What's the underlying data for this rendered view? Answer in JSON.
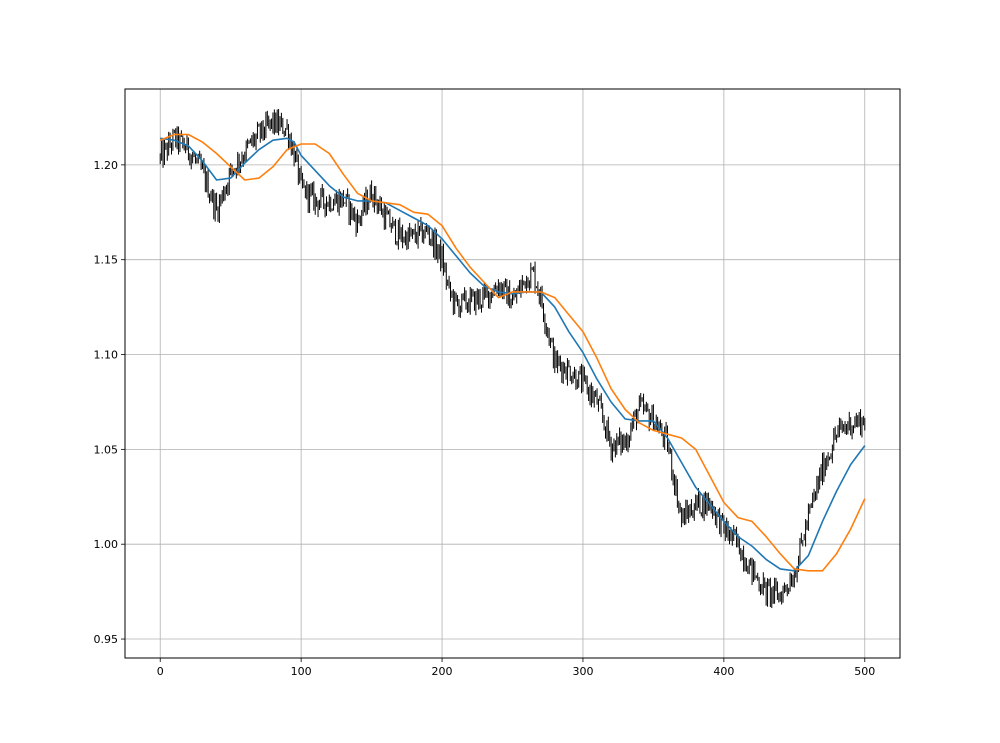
{
  "chart_data": {
    "type": "line",
    "title": "",
    "xlabel": "",
    "ylabel": "",
    "xlim": [
      -25,
      525
    ],
    "ylim": [
      0.94,
      1.24
    ],
    "x_ticks": [
      0,
      100,
      200,
      300,
      400,
      500
    ],
    "x_tick_labels": [
      "0",
      "100",
      "200",
      "300",
      "400",
      "500"
    ],
    "y_ticks": [
      0.95,
      1.0,
      1.05,
      1.1,
      1.15,
      1.2
    ],
    "y_tick_labels": [
      "0.95",
      "1.00",
      "1.05",
      "1.10",
      "1.15",
      "1.20"
    ],
    "grid": true,
    "legend": "none",
    "series": [
      {
        "kind": "ohlc-bars",
        "color": "#000000",
        "anchors": {
          "x": [
            0,
            10,
            20,
            30,
            40,
            50,
            60,
            70,
            80,
            90,
            95,
            100,
            110,
            120,
            130,
            140,
            150,
            160,
            170,
            180,
            190,
            200,
            205,
            210,
            220,
            230,
            240,
            250,
            260,
            265,
            270,
            280,
            290,
            300,
            310,
            320,
            330,
            340,
            350,
            360,
            370,
            380,
            390,
            400,
            410,
            420,
            430,
            440,
            450,
            460,
            470,
            480,
            490,
            500
          ],
          "y": [
            1.203,
            1.214,
            1.208,
            1.196,
            1.176,
            1.196,
            1.207,
            1.216,
            1.222,
            1.219,
            1.206,
            1.188,
            1.181,
            1.181,
            1.182,
            1.17,
            1.186,
            1.172,
            1.162,
            1.162,
            1.165,
            1.15,
            1.133,
            1.126,
            1.128,
            1.13,
            1.137,
            1.128,
            1.141,
            1.143,
            1.13,
            1.096,
            1.092,
            1.085,
            1.075,
            1.052,
            1.054,
            1.072,
            1.066,
            1.053,
            1.013,
            1.021,
            1.022,
            1.008,
            1.0,
            0.986,
            0.975,
            0.973,
            0.985,
            1.014,
            1.04,
            1.058,
            1.064,
            1.065
          ]
        }
      },
      {
        "kind": "line",
        "color": "#1f77b4",
        "x": [
          0,
          10,
          20,
          30,
          40,
          50,
          60,
          70,
          80,
          90,
          95,
          100,
          110,
          120,
          130,
          140,
          150,
          160,
          170,
          180,
          190,
          200,
          210,
          220,
          230,
          240,
          250,
          260,
          270,
          280,
          290,
          300,
          310,
          320,
          330,
          340,
          350,
          360,
          370,
          380,
          390,
          400,
          410,
          420,
          430,
          440,
          450,
          460,
          470,
          480,
          490,
          500
        ],
        "y": [
          1.214,
          1.213,
          1.21,
          1.202,
          1.192,
          1.193,
          1.201,
          1.208,
          1.213,
          1.214,
          1.212,
          1.205,
          1.197,
          1.189,
          1.183,
          1.181,
          1.181,
          1.18,
          1.176,
          1.172,
          1.168,
          1.161,
          1.152,
          1.143,
          1.136,
          1.133,
          1.132,
          1.133,
          1.133,
          1.125,
          1.112,
          1.101,
          1.087,
          1.075,
          1.066,
          1.065,
          1.065,
          1.056,
          1.043,
          1.03,
          1.021,
          1.012,
          1.004,
          0.999,
          0.992,
          0.987,
          0.986,
          0.994,
          1.012,
          1.028,
          1.042,
          1.052
        ]
      },
      {
        "kind": "line",
        "color": "#ff7f0e",
        "x": [
          0,
          10,
          20,
          30,
          40,
          50,
          60,
          70,
          80,
          90,
          100,
          110,
          120,
          130,
          140,
          150,
          160,
          170,
          180,
          190,
          200,
          210,
          220,
          230,
          240,
          250,
          260,
          270,
          280,
          290,
          300,
          310,
          320,
          330,
          340,
          350,
          360,
          370,
          380,
          390,
          400,
          410,
          420,
          430,
          440,
          450,
          460,
          470,
          480,
          490,
          500
        ],
        "y": [
          1.213,
          1.216,
          1.216,
          1.212,
          1.206,
          1.199,
          1.192,
          1.193,
          1.199,
          1.208,
          1.211,
          1.211,
          1.206,
          1.195,
          1.185,
          1.181,
          1.18,
          1.179,
          1.175,
          1.174,
          1.168,
          1.156,
          1.146,
          1.138,
          1.13,
          1.133,
          1.133,
          1.133,
          1.13,
          1.121,
          1.112,
          1.098,
          1.082,
          1.071,
          1.064,
          1.06,
          1.058,
          1.056,
          1.05,
          1.036,
          1.022,
          1.014,
          1.012,
          1.004,
          0.995,
          0.987,
          0.986,
          0.986,
          0.995,
          1.008,
          1.024
        ]
      }
    ]
  }
}
